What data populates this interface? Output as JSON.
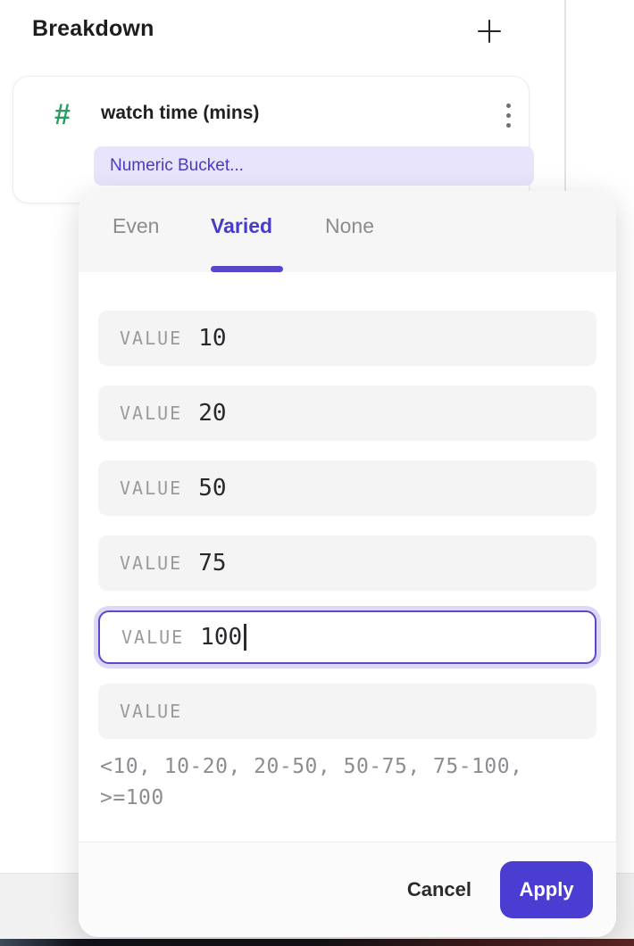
{
  "panel": {
    "title": "Breakdown",
    "add_icon": "plus-icon"
  },
  "breakdown_card": {
    "type_icon": "#",
    "field_name": "watch time (mins)",
    "bucket_label": "Numeric Bucket...",
    "menu_icon": "kebab-menu-icon"
  },
  "bucket_popup": {
    "tabs": [
      {
        "label": "Even",
        "active": false
      },
      {
        "label": "Varied",
        "active": true
      },
      {
        "label": "None",
        "active": false
      }
    ],
    "rows": [
      {
        "label": "VALUE",
        "value": "10",
        "focused": false
      },
      {
        "label": "VALUE",
        "value": "20",
        "focused": false
      },
      {
        "label": "VALUE",
        "value": "50",
        "focused": false
      },
      {
        "label": "VALUE",
        "value": "75",
        "focused": false
      },
      {
        "label": "VALUE",
        "value": "100",
        "focused": true
      },
      {
        "label": "VALUE",
        "value": "",
        "focused": false
      }
    ],
    "preview": "<10, 10-20, 20-50, 50-75, 75-100, >=100",
    "cancel_label": "Cancel",
    "apply_label": "Apply"
  },
  "colors": {
    "accent_purple": "#4a3ac8",
    "apply_button": "#4c3dd2",
    "pill_background": "#e8e4fb",
    "focus_border": "#5a49c9",
    "focus_halo": "#ddd8f6",
    "hash_green": "#2d9c62",
    "row_background": "#f4f4f5",
    "header_background": "#f6f6f7"
  }
}
